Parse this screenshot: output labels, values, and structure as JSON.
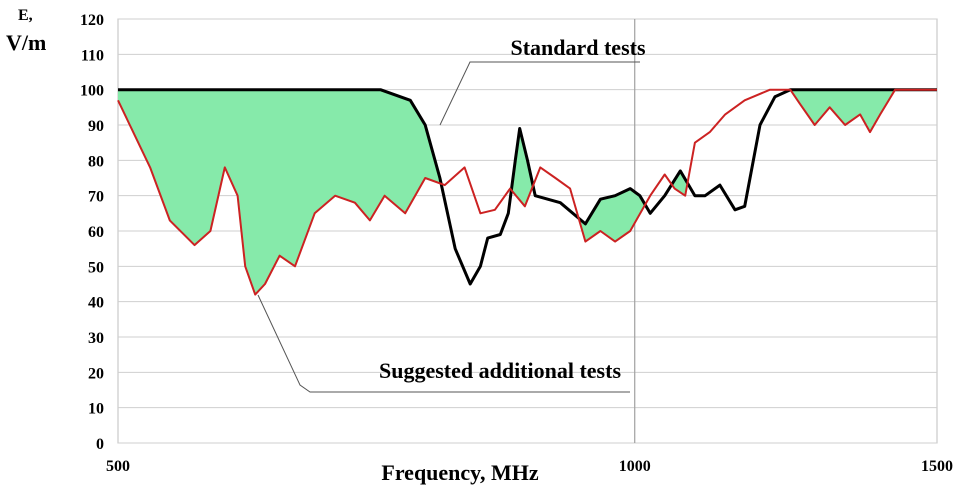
{
  "chart_data": {
    "type": "line",
    "xlabel": "Frequency, MHz",
    "ylabel": [
      "E,",
      "V/m"
    ],
    "xscale": "log",
    "xlim": [
      500,
      1500
    ],
    "xticks": [
      500,
      1000,
      1500
    ],
    "ylim": [
      0,
      120
    ],
    "yticks": [
      0,
      10,
      20,
      30,
      40,
      50,
      60,
      70,
      80,
      90,
      100,
      110,
      120
    ],
    "grid": true,
    "fill_between_color": "#86eaaa",
    "series": [
      {
        "name": "Standard tests",
        "color": "#000000",
        "x": [
          500,
          711,
          740,
          755,
          770,
          786,
          802,
          813,
          821,
          835,
          844,
          852,
          857,
          866,
          875,
          905,
          936,
          955,
          974,
          994,
          1007,
          1021,
          1041,
          1063,
          1084,
          1099,
          1121,
          1144,
          1159,
          1183,
          1207,
          1232,
          1500
        ],
        "values": [
          100,
          100,
          97,
          90,
          75,
          55,
          45,
          50,
          58,
          59,
          65,
          80,
          89,
          80,
          70,
          68,
          62,
          69,
          70,
          72,
          70,
          65,
          70,
          77,
          70,
          70,
          73,
          66,
          67,
          90,
          98,
          100,
          100
        ]
      },
      {
        "name": "Suggested additional tests",
        "color": "#cc2222",
        "x": [
          500,
          508,
          522,
          536,
          554,
          566,
          577,
          587,
          593,
          601,
          609,
          621,
          634,
          651,
          669,
          687,
          701,
          715,
          735,
          755,
          775,
          796,
          813,
          829,
          846,
          863,
          881,
          899,
          917,
          936,
          955,
          974,
          994,
          1021,
          1041,
          1055,
          1070,
          1084,
          1106,
          1129,
          1159,
          1199,
          1232,
          1248,
          1273,
          1299,
          1326,
          1353,
          1371,
          1390,
          1418,
          1500
        ],
        "values": [
          97,
          90,
          78,
          63,
          56,
          60,
          78,
          70,
          50,
          42,
          45,
          53,
          50,
          65,
          70,
          68,
          63,
          70,
          65,
          75,
          73,
          78,
          65,
          66,
          72,
          67,
          78,
          75,
          72,
          57,
          60,
          57,
          60,
          70,
          76,
          72,
          70,
          85,
          88,
          93,
          97,
          100,
          100,
          96,
          90,
          95,
          90,
          93,
          88,
          93,
          100,
          100
        ]
      }
    ]
  }
}
